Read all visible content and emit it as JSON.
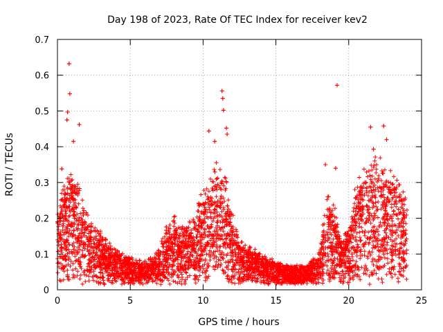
{
  "chart_data": {
    "type": "scatter",
    "title": "Day 198 of 2023, Rate Of TEC Index for receiver kev2",
    "xlabel": "GPS time / hours",
    "ylabel": "ROTI / TECUs",
    "xlim": [
      0,
      25
    ],
    "ylim": [
      0,
      0.7
    ],
    "x_ticks": [
      "0",
      "5",
      "10",
      "15",
      "20",
      "25"
    ],
    "y_ticks": [
      "0",
      "0.1",
      "0.2",
      "0.3",
      "0.4",
      "0.5",
      "0.6",
      "0.7"
    ],
    "grid": true,
    "marker": "+",
    "series": [
      {
        "name": "ROTI",
        "color": "#ff0000",
        "notable_points": [
          {
            "x": 0.8,
            "y": 0.632
          },
          {
            "x": 0.85,
            "y": 0.548
          },
          {
            "x": 0.7,
            "y": 0.497
          },
          {
            "x": 0.65,
            "y": 0.475
          },
          {
            "x": 1.5,
            "y": 0.462
          },
          {
            "x": 1.1,
            "y": 0.415
          },
          {
            "x": 0.3,
            "y": 0.338
          },
          {
            "x": 10.4,
            "y": 0.444
          },
          {
            "x": 11.3,
            "y": 0.556
          },
          {
            "x": 11.35,
            "y": 0.535
          },
          {
            "x": 11.4,
            "y": 0.502
          },
          {
            "x": 11.6,
            "y": 0.452
          },
          {
            "x": 11.65,
            "y": 0.435
          },
          {
            "x": 10.8,
            "y": 0.415
          },
          {
            "x": 19.2,
            "y": 0.572
          },
          {
            "x": 22.4,
            "y": 0.458
          },
          {
            "x": 21.5,
            "y": 0.455
          },
          {
            "x": 22.6,
            "y": 0.42
          },
          {
            "x": 21.7,
            "y": 0.393
          },
          {
            "x": 18.4,
            "y": 0.35
          },
          {
            "x": 19.1,
            "y": 0.34
          }
        ],
        "envelope": {
          "hours": [
            0,
            0.5,
            1,
            1.5,
            2,
            2.5,
            3,
            3.5,
            4,
            4.5,
            5,
            5.5,
            6,
            6.5,
            7,
            7.5,
            8,
            8.5,
            9,
            9.5,
            10,
            10.5,
            11,
            11.5,
            12,
            12.5,
            13,
            13.5,
            14,
            14.5,
            15,
            15.5,
            16,
            16.5,
            17,
            17.5,
            18,
            18.5,
            19,
            19.5,
            20,
            20.5,
            21,
            21.5,
            22,
            22.5,
            23,
            23.5,
            24
          ],
          "typical_max": [
            0.2,
            0.26,
            0.3,
            0.25,
            0.18,
            0.15,
            0.13,
            0.11,
            0.09,
            0.08,
            0.07,
            0.06,
            0.06,
            0.07,
            0.09,
            0.15,
            0.17,
            0.15,
            0.16,
            0.2,
            0.24,
            0.28,
            0.32,
            0.28,
            0.18,
            0.12,
            0.1,
            0.09,
            0.08,
            0.07,
            0.06,
            0.05,
            0.05,
            0.05,
            0.05,
            0.06,
            0.09,
            0.25,
            0.2,
            0.12,
            0.14,
            0.25,
            0.3,
            0.32,
            0.33,
            0.3,
            0.3,
            0.28,
            0.22
          ]
        }
      }
    ]
  }
}
